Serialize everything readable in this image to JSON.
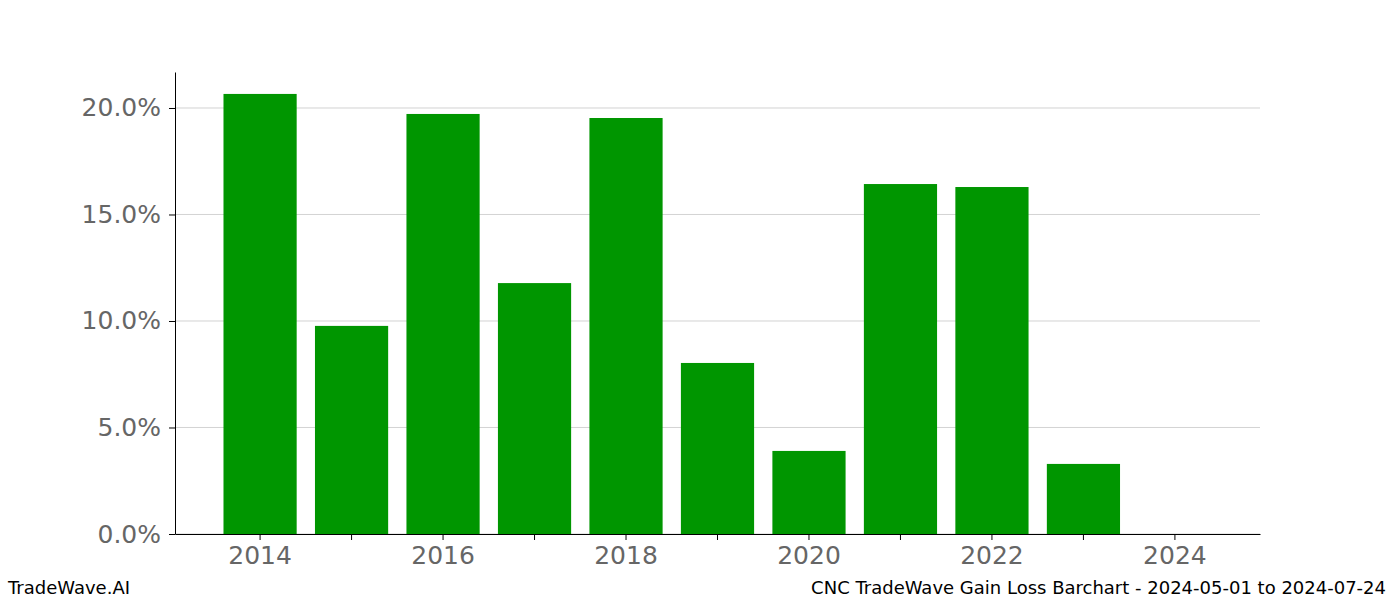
{
  "chart_data": {
    "type": "bar",
    "title": "CNC TradeWave Gain Loss Barchart - 2024-05-01 to 2024-07-24",
    "source": "TradeWave.AI",
    "categories": [
      "2014",
      null,
      "2016",
      null,
      "2018",
      null,
      "2020",
      null,
      "2022",
      null,
      "2024"
    ],
    "values": [
      20.66,
      9.77,
      19.72,
      11.78,
      19.53,
      8.03,
      3.9,
      16.43,
      16.29,
      3.29,
      0
    ],
    "color": "#009600",
    "ylim": [
      0,
      21.69
    ],
    "yticks": [
      {
        "value": 0,
        "label": "0.0%"
      },
      {
        "value": 5,
        "label": "5.0%"
      },
      {
        "value": 10,
        "label": "10.0%"
      },
      {
        "value": 15,
        "label": "15.0%"
      },
      {
        "value": 20,
        "label": "20.0%"
      }
    ],
    "grid": true
  }
}
